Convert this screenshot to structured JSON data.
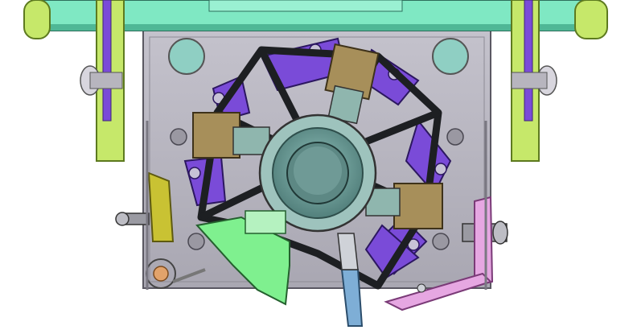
{
  "image": {
    "subject": "cad-brush-holder-assembly",
    "palette": {
      "background": "#ffffff",
      "housing_plate": "#b9b7c0",
      "housing_shadow": "#8e8c96",
      "top_bar": "#7fe8c3",
      "top_bar_dark": "#4fb796",
      "side_arm": "#c6e86a",
      "side_arm_dark": "#8fb33a",
      "purple_holder": "#7a4bd8",
      "purple_dark": "#4a2a8f",
      "frame_black": "#1d1f22",
      "brush_tan": "#a78f5a",
      "brush_tan_dark": "#6f5b34",
      "commutator_teal": "#7aa7a2",
      "commutator_inner": "#5d8884",
      "green_part": "#7ff08f",
      "blue_rod": "#7eaed6",
      "pink_lever": "#e6a7e2",
      "yellow_part": "#c9c233",
      "bolt_grey": "#9a9aa2",
      "copper": "#e2a36b"
    }
  }
}
